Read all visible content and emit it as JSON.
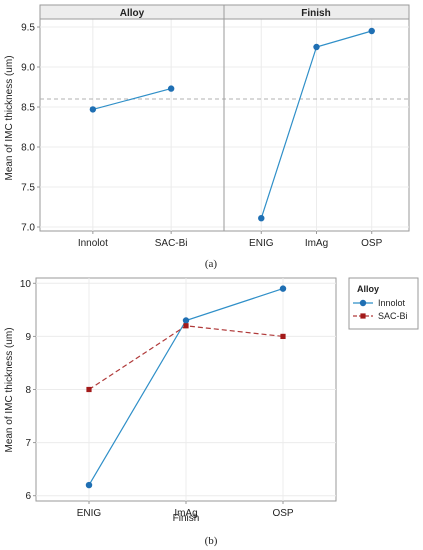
{
  "chart_data": [
    {
      "type": "line",
      "panel_caption": "(a)",
      "ylabel": "Mean of IMC thickness (um)",
      "ylim": [
        6.95,
        9.6
      ],
      "yticks": [
        "7.0",
        "7.5",
        "8.0",
        "8.5",
        "9.0",
        "9.5"
      ],
      "grid": true,
      "reference_line": 8.6,
      "colors": {
        "series": "#1f6fb3",
        "line": "#2f8fc8",
        "reference": "#b0b0b0"
      },
      "panels": [
        {
          "title": "Alloy",
          "categories": [
            "Innolot",
            "SAC-Bi"
          ],
          "values": [
            8.47,
            8.73
          ]
        },
        {
          "title": "Finish",
          "categories": [
            "ENIG",
            "ImAg",
            "OSP"
          ],
          "values": [
            7.11,
            9.25,
            9.45
          ]
        }
      ]
    },
    {
      "type": "line",
      "panel_caption": "(b)",
      "xlabel": "Finish",
      "ylabel": "Mean of IMC thickness (um)",
      "categories": [
        "ENIG",
        "ImAg",
        "OSP"
      ],
      "ylim": [
        5.9,
        10.1
      ],
      "yticks": [
        "6",
        "7",
        "8",
        "9",
        "10"
      ],
      "grid": true,
      "legend": {
        "title": "Alloy",
        "placement": "right"
      },
      "series": [
        {
          "name": "Innolot",
          "values": [
            6.2,
            9.3,
            9.9
          ],
          "color": "#1f6fb3",
          "line_color": "#2f8fc8",
          "marker": "circle",
          "dash": "solid"
        },
        {
          "name": "SAC-Bi",
          "values": [
            8.0,
            9.2,
            9.0
          ],
          "color": "#a31a1a",
          "line_color": "#b03a3a",
          "marker": "square",
          "dash": "dashed"
        }
      ]
    }
  ]
}
